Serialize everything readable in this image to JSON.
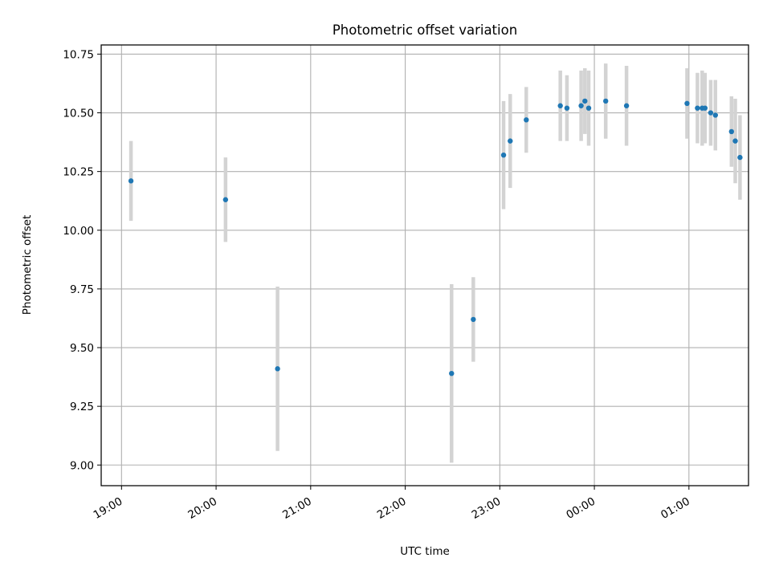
{
  "chart_data": {
    "type": "scatter",
    "title": "Photometric offset variation",
    "xlabel": "UTC time",
    "ylabel": "Photometric offset",
    "x_unit": "hours (UTC), continuous past midnight",
    "xlim": [
      18.785,
      25.63
    ],
    "ylim": [
      8.912,
      10.789
    ],
    "x_ticks": [
      {
        "value": 19,
        "label": "19:00"
      },
      {
        "value": 20,
        "label": "20:00"
      },
      {
        "value": 21,
        "label": "21:00"
      },
      {
        "value": 22,
        "label": "22:00"
      },
      {
        "value": 23,
        "label": "23:00"
      },
      {
        "value": 24,
        "label": "00:00"
      },
      {
        "value": 25,
        "label": "01:00"
      }
    ],
    "y_ticks": [
      {
        "value": 9.0,
        "label": "9.00"
      },
      {
        "value": 9.25,
        "label": "9.25"
      },
      {
        "value": 9.5,
        "label": "9.50"
      },
      {
        "value": 9.75,
        "label": "9.75"
      },
      {
        "value": 10.0,
        "label": "10.00"
      },
      {
        "value": 10.25,
        "label": "10.25"
      },
      {
        "value": 10.5,
        "label": "10.50"
      },
      {
        "value": 10.75,
        "label": "10.75"
      }
    ],
    "grid": true,
    "colors": {
      "point": "#1f77b4",
      "errorbar": "#d3d3d3",
      "grid": "#b0b0b0"
    },
    "points": [
      {
        "x": 19.1,
        "y": 10.21,
        "err": 0.17
      },
      {
        "x": 20.1,
        "y": 10.13,
        "err": 0.18
      },
      {
        "x": 20.65,
        "y": 9.41,
        "err": 0.35
      },
      {
        "x": 22.49,
        "y": 9.39,
        "err": 0.38
      },
      {
        "x": 22.72,
        "y": 9.62,
        "err": 0.18
      },
      {
        "x": 23.04,
        "y": 10.32,
        "err": 0.23
      },
      {
        "x": 23.11,
        "y": 10.38,
        "err": 0.2
      },
      {
        "x": 23.28,
        "y": 10.47,
        "err": 0.14
      },
      {
        "x": 23.64,
        "y": 10.53,
        "err": 0.15
      },
      {
        "x": 23.71,
        "y": 10.52,
        "err": 0.14
      },
      {
        "x": 23.86,
        "y": 10.53,
        "err": 0.15
      },
      {
        "x": 23.9,
        "y": 10.55,
        "err": 0.14
      },
      {
        "x": 23.94,
        "y": 10.52,
        "err": 0.16
      },
      {
        "x": 24.12,
        "y": 10.55,
        "err": 0.16
      },
      {
        "x": 24.34,
        "y": 10.53,
        "err": 0.17
      },
      {
        "x": 24.98,
        "y": 10.54,
        "err": 0.15
      },
      {
        "x": 25.09,
        "y": 10.52,
        "err": 0.15
      },
      {
        "x": 25.14,
        "y": 10.52,
        "err": 0.16
      },
      {
        "x": 25.17,
        "y": 10.52,
        "err": 0.15
      },
      {
        "x": 25.23,
        "y": 10.5,
        "err": 0.14
      },
      {
        "x": 25.28,
        "y": 10.49,
        "err": 0.15
      },
      {
        "x": 25.45,
        "y": 10.42,
        "err": 0.15
      },
      {
        "x": 25.49,
        "y": 10.38,
        "err": 0.18
      },
      {
        "x": 25.54,
        "y": 10.31,
        "err": 0.18
      }
    ]
  }
}
